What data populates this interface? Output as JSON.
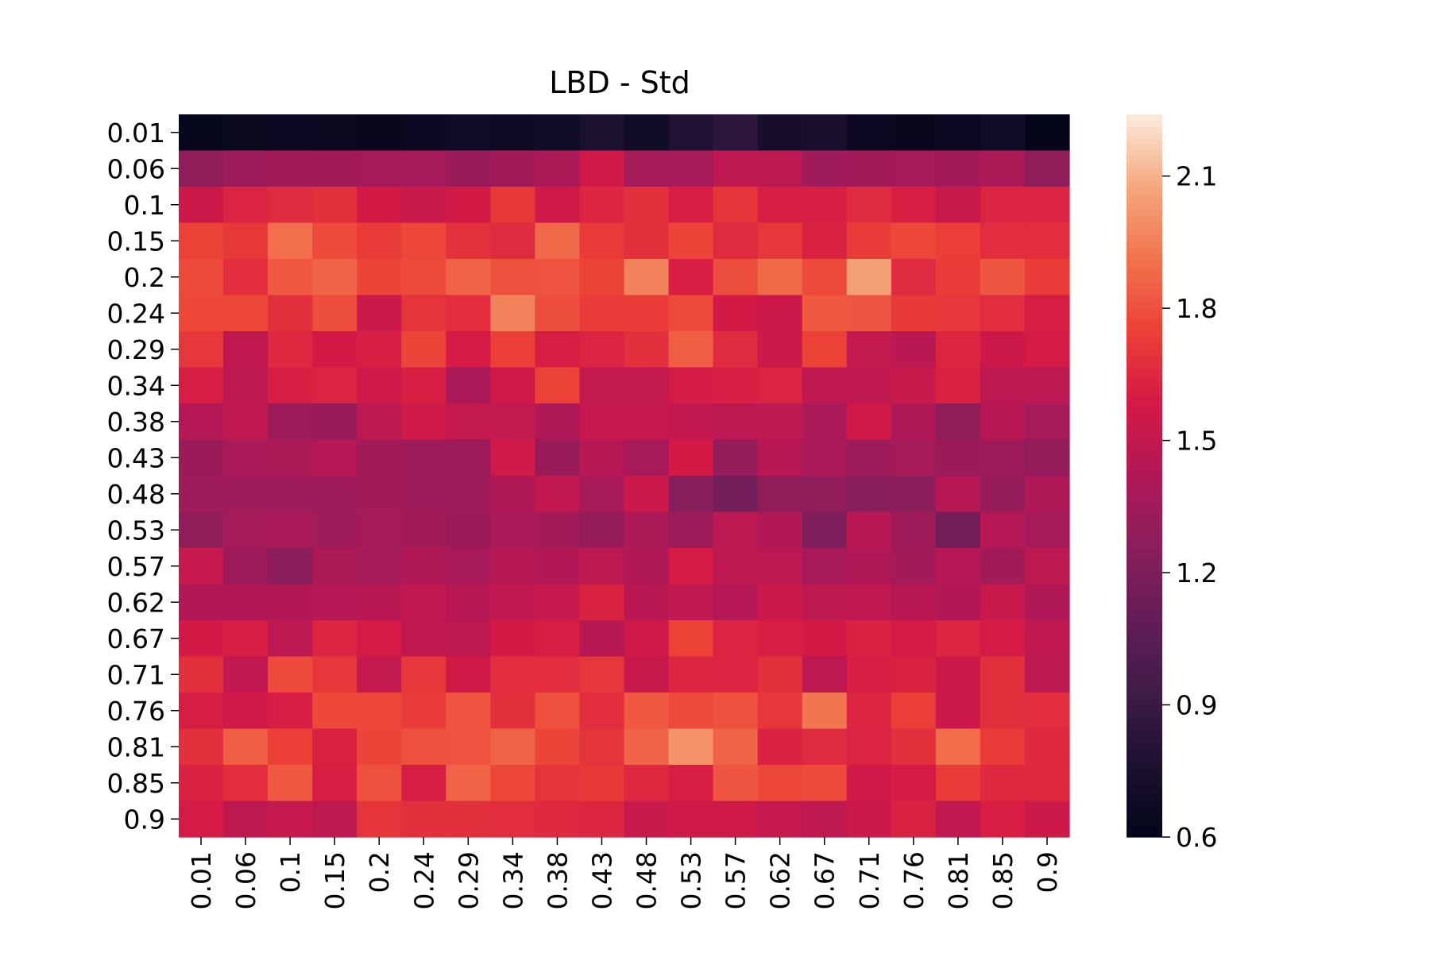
{
  "chart_data": {
    "type": "heatmap",
    "title": "LBD - Std",
    "xlabel": "",
    "ylabel": "",
    "x_tick_labels": [
      "0.01",
      "0.06",
      "0.1",
      "0.15",
      "0.2",
      "0.24",
      "0.29",
      "0.34",
      "0.38",
      "0.43",
      "0.48",
      "0.53",
      "0.57",
      "0.62",
      "0.67",
      "0.71",
      "0.76",
      "0.81",
      "0.85",
      "0.9"
    ],
    "y_tick_labels": [
      "0.01",
      "0.06",
      "0.1",
      "0.15",
      "0.2",
      "0.24",
      "0.29",
      "0.34",
      "0.38",
      "0.43",
      "0.48",
      "0.53",
      "0.57",
      "0.62",
      "0.67",
      "0.71",
      "0.76",
      "0.81",
      "0.85",
      "0.9"
    ],
    "colorbar": {
      "min": 0.6,
      "max": 2.24,
      "ticks": [
        0.6,
        0.9,
        1.2,
        1.5,
        1.8,
        2.1
      ],
      "tick_labels": [
        "0.6",
        "0.9",
        "1.2",
        "1.5",
        "1.8",
        "2.1"
      ],
      "colormap": "rocket"
    },
    "values": [
      [
        0.62,
        0.64,
        0.65,
        0.64,
        0.63,
        0.66,
        0.69,
        0.68,
        0.69,
        0.76,
        0.69,
        0.77,
        0.85,
        0.72,
        0.74,
        0.66,
        0.63,
        0.65,
        0.69,
        0.61
      ],
      [
        1.28,
        1.34,
        1.36,
        1.36,
        1.37,
        1.37,
        1.32,
        1.36,
        1.4,
        1.56,
        1.37,
        1.38,
        1.48,
        1.47,
        1.35,
        1.36,
        1.37,
        1.36,
        1.4,
        1.28
      ],
      [
        1.55,
        1.63,
        1.66,
        1.68,
        1.58,
        1.53,
        1.58,
        1.72,
        1.56,
        1.64,
        1.68,
        1.61,
        1.7,
        1.61,
        1.61,
        1.66,
        1.61,
        1.53,
        1.63,
        1.63
      ],
      [
        1.75,
        1.72,
        1.9,
        1.78,
        1.73,
        1.77,
        1.69,
        1.66,
        1.88,
        1.73,
        1.68,
        1.76,
        1.66,
        1.71,
        1.62,
        1.73,
        1.77,
        1.74,
        1.67,
        1.67
      ],
      [
        1.78,
        1.67,
        1.83,
        1.86,
        1.76,
        1.78,
        1.86,
        1.8,
        1.81,
        1.76,
        1.96,
        1.61,
        1.79,
        1.88,
        1.78,
        2.05,
        1.66,
        1.73,
        1.82,
        1.73
      ],
      [
        1.77,
        1.77,
        1.68,
        1.79,
        1.54,
        1.7,
        1.67,
        1.96,
        1.79,
        1.73,
        1.73,
        1.78,
        1.58,
        1.55,
        1.83,
        1.82,
        1.72,
        1.71,
        1.67,
        1.6
      ],
      [
        1.71,
        1.49,
        1.65,
        1.58,
        1.61,
        1.76,
        1.59,
        1.74,
        1.6,
        1.63,
        1.68,
        1.84,
        1.66,
        1.54,
        1.75,
        1.51,
        1.46,
        1.64,
        1.55,
        1.59
      ],
      [
        1.6,
        1.47,
        1.61,
        1.63,
        1.56,
        1.61,
        1.39,
        1.56,
        1.75,
        1.51,
        1.51,
        1.59,
        1.61,
        1.63,
        1.49,
        1.49,
        1.53,
        1.62,
        1.47,
        1.47
      ],
      [
        1.44,
        1.49,
        1.34,
        1.32,
        1.48,
        1.56,
        1.51,
        1.51,
        1.42,
        1.52,
        1.52,
        1.5,
        1.47,
        1.48,
        1.39,
        1.56,
        1.41,
        1.28,
        1.45,
        1.37
      ],
      [
        1.33,
        1.39,
        1.4,
        1.44,
        1.36,
        1.34,
        1.34,
        1.56,
        1.32,
        1.45,
        1.38,
        1.58,
        1.3,
        1.45,
        1.39,
        1.34,
        1.37,
        1.33,
        1.34,
        1.3
      ],
      [
        1.35,
        1.35,
        1.35,
        1.35,
        1.36,
        1.34,
        1.35,
        1.42,
        1.5,
        1.38,
        1.54,
        1.24,
        1.16,
        1.28,
        1.29,
        1.25,
        1.26,
        1.45,
        1.31,
        1.41
      ],
      [
        1.29,
        1.37,
        1.39,
        1.35,
        1.37,
        1.36,
        1.33,
        1.39,
        1.36,
        1.31,
        1.4,
        1.34,
        1.47,
        1.43,
        1.21,
        1.46,
        1.35,
        1.16,
        1.44,
        1.37
      ],
      [
        1.52,
        1.34,
        1.27,
        1.4,
        1.37,
        1.42,
        1.38,
        1.45,
        1.43,
        1.47,
        1.42,
        1.59,
        1.48,
        1.47,
        1.38,
        1.42,
        1.36,
        1.44,
        1.36,
        1.47
      ],
      [
        1.43,
        1.43,
        1.43,
        1.44,
        1.46,
        1.5,
        1.45,
        1.49,
        1.52,
        1.62,
        1.46,
        1.49,
        1.44,
        1.54,
        1.48,
        1.49,
        1.46,
        1.43,
        1.53,
        1.42
      ],
      [
        1.58,
        1.61,
        1.47,
        1.64,
        1.59,
        1.49,
        1.48,
        1.58,
        1.6,
        1.45,
        1.56,
        1.75,
        1.63,
        1.61,
        1.58,
        1.62,
        1.59,
        1.64,
        1.59,
        1.49
      ],
      [
        1.68,
        1.5,
        1.78,
        1.71,
        1.51,
        1.71,
        1.57,
        1.67,
        1.67,
        1.71,
        1.53,
        1.64,
        1.63,
        1.68,
        1.47,
        1.61,
        1.62,
        1.55,
        1.68,
        1.47
      ],
      [
        1.6,
        1.56,
        1.6,
        1.77,
        1.77,
        1.73,
        1.81,
        1.68,
        1.8,
        1.67,
        1.83,
        1.78,
        1.8,
        1.71,
        1.92,
        1.64,
        1.74,
        1.55,
        1.68,
        1.67
      ],
      [
        1.68,
        1.84,
        1.74,
        1.62,
        1.76,
        1.8,
        1.81,
        1.86,
        1.76,
        1.7,
        1.86,
        2.01,
        1.86,
        1.62,
        1.66,
        1.63,
        1.68,
        1.89,
        1.73,
        1.65
      ],
      [
        1.62,
        1.67,
        1.83,
        1.61,
        1.8,
        1.6,
        1.86,
        1.77,
        1.7,
        1.72,
        1.65,
        1.61,
        1.82,
        1.77,
        1.78,
        1.56,
        1.59,
        1.73,
        1.65,
        1.65
      ],
      [
        1.59,
        1.48,
        1.52,
        1.48,
        1.7,
        1.68,
        1.68,
        1.67,
        1.65,
        1.64,
        1.53,
        1.56,
        1.56,
        1.52,
        1.48,
        1.54,
        1.62,
        1.49,
        1.61,
        1.55
      ]
    ]
  }
}
